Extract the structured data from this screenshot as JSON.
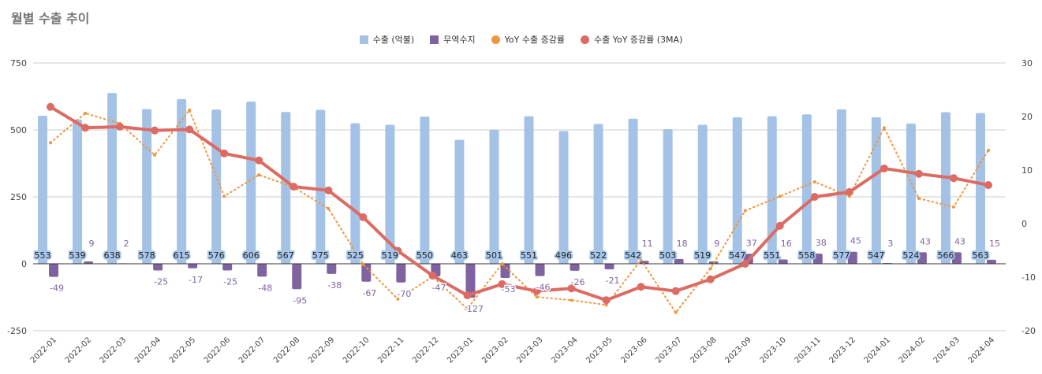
{
  "title": "월별 수출 추이",
  "colors": {
    "export": "#a4c2e6",
    "trade_balance": "#7f62a0",
    "yoy": "#f0963e",
    "yoy_3ma": "#dc6b63",
    "grid": "#cccccc",
    "zero": "#333333"
  },
  "chart_data": {
    "type": "bar",
    "title": "월별 수출 추이",
    "xlabel": "",
    "ylabel_left": "",
    "ylabel_right": "",
    "ylim_left": [
      -250,
      750
    ],
    "ylim_right": [
      -20,
      30
    ],
    "yticks_left": [
      "750",
      "500",
      "250",
      "0",
      "-250"
    ],
    "yticks_right": [
      "30",
      "20",
      "10",
      "0",
      "-10",
      "-20"
    ],
    "grid": true,
    "legend_position": "top",
    "categories": [
      "2022-01",
      "2022-02",
      "2022-03",
      "2022-04",
      "2022-05",
      "2022-06",
      "2022-07",
      "2022-08",
      "2022-09",
      "2022-10",
      "2022-11",
      "2022-12",
      "2023-01",
      "2023-02",
      "2023-03",
      "2023-04",
      "2023-05",
      "2023-06",
      "2023-07",
      "2023-08",
      "2023-09",
      "2023-10",
      "2023-11",
      "2023-12",
      "2024-01",
      "2024-02",
      "2024-03",
      "2024-04"
    ],
    "series": [
      {
        "name": "수출 (억불)",
        "type": "bar",
        "axis": "left",
        "values": [
          553,
          539,
          638,
          578,
          615,
          576,
          606,
          567,
          575,
          525,
          519,
          550,
          463,
          501,
          551,
          496,
          522,
          542,
          503,
          519,
          547,
          551,
          558,
          577,
          547,
          524,
          566,
          563
        ]
      },
      {
        "name": "무역수지",
        "type": "bar",
        "axis": "left",
        "values": [
          -49,
          9,
          2,
          -25,
          -17,
          -25,
          -48,
          -95,
          -38,
          -67,
          -70,
          -47,
          -127,
          -53,
          -46,
          -26,
          -21,
          11,
          18,
          9,
          37,
          16,
          38,
          45,
          3,
          43,
          43,
          15
        ]
      },
      {
        "name": "YoY 수출 증감률",
        "type": "line",
        "axis": "right",
        "style": "dotted",
        "values": [
          15.1,
          20.6,
          18.7,
          12.8,
          21.2,
          5.1,
          9.1,
          6.8,
          2.8,
          -7.6,
          -14.1,
          -9.9,
          -15.9,
          -7.5,
          -13.7,
          -14.3,
          -15.2,
          -6.8,
          -16.6,
          -8.4,
          2.4,
          5.1,
          7.8,
          5.1,
          17.9,
          4.7,
          3.1,
          13.7
        ]
      },
      {
        "name": "수출 YoY 증감률 (3MA)",
        "type": "line",
        "axis": "right",
        "style": "solid",
        "values": [
          21.8,
          17.9,
          18.1,
          17.4,
          17.6,
          13.1,
          11.8,
          6.9,
          6.2,
          1.2,
          -5.1,
          -9.7,
          -13.4,
          -11.3,
          -12.6,
          -12.1,
          -14.3,
          -11.8,
          -12.6,
          -10.4,
          -7.5,
          -0.4,
          5.0,
          5.9,
          10.3,
          9.3,
          8.5,
          7.2
        ]
      }
    ]
  }
}
